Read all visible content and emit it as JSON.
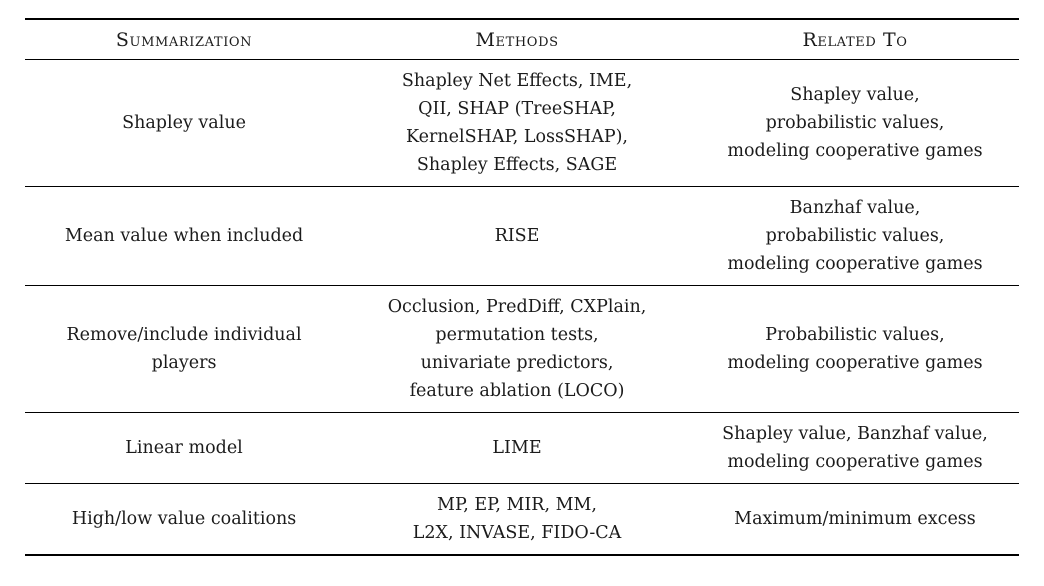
{
  "colors": {
    "background": "#ffffff",
    "text": "#1b1b1b",
    "rule": "#000000"
  },
  "table": {
    "headers": [
      "Summarization",
      "Methods",
      "Related To"
    ],
    "rows": [
      {
        "summarization": "Shapley value",
        "methods": "Shapley Net Effects, IME,\nQII, SHAP (TreeSHAP,\nKernelSHAP, LossSHAP),\nShapley Effects, SAGE",
        "related_to": "Shapley value,\nprobabilistic values,\nmodeling cooperative games"
      },
      {
        "summarization": "Mean value when included",
        "methods": "RISE",
        "related_to": "Banzhaf value,\nprobabilistic values,\nmodeling cooperative games"
      },
      {
        "summarization": "Remove/include individual\nplayers",
        "methods": "Occlusion, PredDiff, CXPlain,\npermutation tests,\nunivariate predictors,\nfeature ablation (LOCO)",
        "related_to": "Probabilistic values,\nmodeling cooperative games"
      },
      {
        "summarization": "Linear model",
        "methods": "LIME",
        "related_to": "Shapley value, Banzhaf value,\nmodeling cooperative games"
      },
      {
        "summarization": "High/low value coalitions",
        "methods": "MP, EP, MIR, MM,\nL2X, INVASE, FIDO-CA",
        "related_to": "Maximum/minimum excess"
      }
    ]
  }
}
